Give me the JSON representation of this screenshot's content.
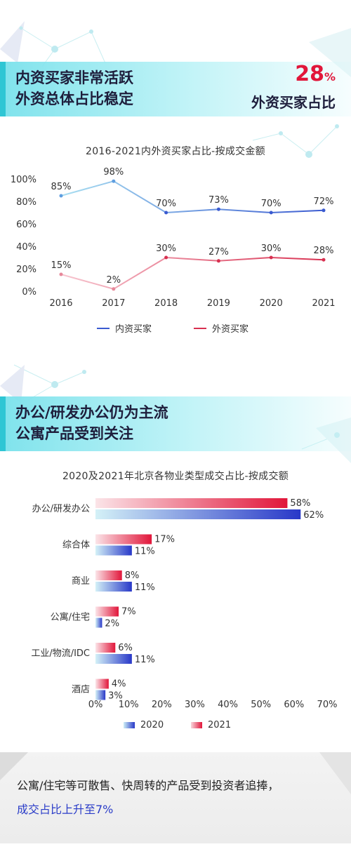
{
  "section1": {
    "title_line1": "内资买家非常活跃",
    "title_line2": "外资总体占比稳定",
    "highlight_value": "28",
    "highlight_unit": "%",
    "highlight_caption": "外资买家占比"
  },
  "section2": {
    "title_line1": "办公/研发办公仍为主流",
    "title_line2": "公寓产品受到关注"
  },
  "footer": {
    "line1": "公寓/住宅等可散售、快周转的产品受到投资者追捧，",
    "line2": "成交占比上升至7%"
  },
  "chart_data": [
    {
      "type": "line",
      "title": "2016-2021内外资买家占比-按成交金额",
      "x": [
        "2016",
        "2017",
        "2018",
        "2019",
        "2020",
        "2021"
      ],
      "y_ticks": [
        "0%",
        "20%",
        "40%",
        "60%",
        "80%",
        "100%"
      ],
      "ylim": [
        0,
        100
      ],
      "grid": false,
      "legend_position": "bottom",
      "series": [
        {
          "name": "内资买家",
          "values": [
            85,
            98,
            70,
            73,
            70,
            72
          ],
          "labels": [
            "85%",
            "98%",
            "70%",
            "73%",
            "70%",
            "72%"
          ],
          "color": "#3a5ad0"
        },
        {
          "name": "外资买家",
          "values": [
            15,
            2,
            30,
            27,
            30,
            28
          ],
          "labels": [
            "15%",
            "2%",
            "30%",
            "27%",
            "30%",
            "28%"
          ],
          "color": "#d83050"
        }
      ]
    },
    {
      "type": "bar",
      "orientation": "horizontal",
      "title": "2020及2021年北京各物业类型成交占比-按成交额",
      "categories": [
        "办公/研发办公",
        "综合体",
        "商业",
        "公寓/住宅",
        "工业/物流/IDC",
        "酒店"
      ],
      "x_ticks": [
        "0%",
        "10%",
        "20%",
        "30%",
        "40%",
        "50%",
        "60%",
        "70%"
      ],
      "xlim": [
        0,
        70
      ],
      "grid": false,
      "legend_position": "bottom",
      "series": [
        {
          "name": "2021",
          "values": [
            58,
            17,
            8,
            7,
            6,
            4
          ],
          "labels": [
            "58%",
            "17%",
            "8%",
            "7%",
            "6%",
            "4%"
          ],
          "color": "#e1163a"
        },
        {
          "name": "2020",
          "values": [
            62,
            11,
            11,
            2,
            11,
            3
          ],
          "labels": [
            "62%",
            "11%",
            "11%",
            "2%",
            "11%",
            "3%"
          ],
          "color": "#2838c8"
        }
      ]
    }
  ]
}
